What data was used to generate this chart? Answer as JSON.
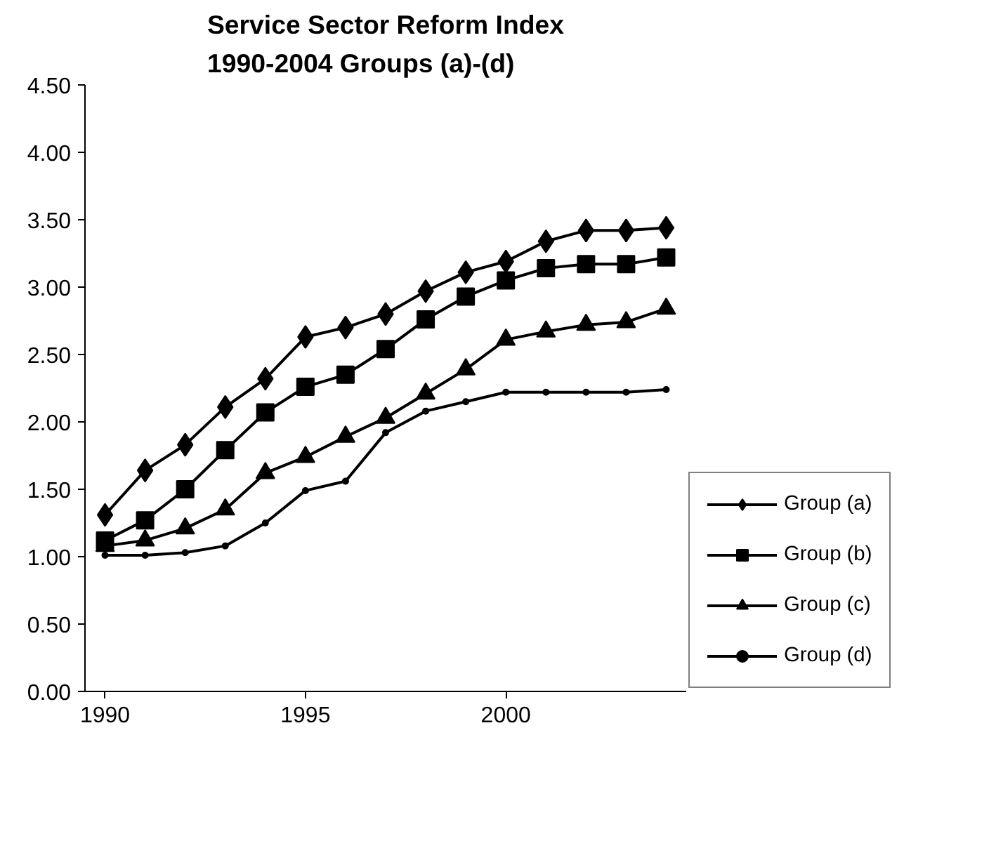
{
  "chart_data": {
    "type": "line",
    "title": "Service Sector Reform Index\n1990-2004 Groups (a)-(d)",
    "x": [
      1990,
      1991,
      1992,
      1993,
      1994,
      1995,
      1996,
      1997,
      1998,
      1999,
      2000,
      2001,
      2002,
      2003,
      2004
    ],
    "series": [
      {
        "name": "Group (a)",
        "color": "#000000",
        "marker": "diamond",
        "values": [
          1.31,
          1.64,
          1.83,
          2.11,
          2.32,
          2.63,
          2.7,
          2.8,
          2.97,
          3.11,
          3.19,
          3.34,
          3.42,
          3.42,
          3.44
        ]
      },
      {
        "name": "Group (b)",
        "color": "#000000",
        "marker": "square",
        "values": [
          1.12,
          1.27,
          1.5,
          1.79,
          2.07,
          2.26,
          2.35,
          2.54,
          2.76,
          2.93,
          3.05,
          3.14,
          3.17,
          3.17,
          3.22
        ]
      },
      {
        "name": "Group (c)",
        "color": "#000000",
        "marker": "triangle",
        "values": [
          1.08,
          1.12,
          1.21,
          1.35,
          1.62,
          1.74,
          1.89,
          2.03,
          2.21,
          2.39,
          2.61,
          2.67,
          2.72,
          2.74,
          2.84
        ]
      },
      {
        "name": "Group (d)",
        "color": "#000000",
        "marker": "circle",
        "values": [
          1.01,
          1.01,
          1.03,
          1.08,
          1.25,
          1.49,
          1.56,
          1.92,
          2.08,
          2.15,
          2.22,
          2.22,
          2.22,
          2.22,
          2.24
        ]
      }
    ],
    "xlim": [
      1989.5,
      2004.5
    ],
    "xticks": [
      {
        "value": 1990,
        "label": "1990"
      },
      {
        "value": 1995,
        "label": "1995"
      },
      {
        "value": 2000,
        "label": "2000"
      }
    ],
    "ylim": [
      0,
      4.5
    ],
    "yticks": [
      {
        "value": 0,
        "label": "0.00"
      },
      {
        "value": 0.5,
        "label": "0.50"
      },
      {
        "value": 1,
        "label": "1.00"
      },
      {
        "value": 1.5,
        "label": "1.50"
      },
      {
        "value": 2,
        "label": "2.00"
      },
      {
        "value": 2.5,
        "label": "2.50"
      },
      {
        "value": 3,
        "label": "3.00"
      },
      {
        "value": 3.5,
        "label": "3.50"
      },
      {
        "value": 4,
        "label": "4.00"
      },
      {
        "value": 4.5,
        "label": "4.50"
      }
    ],
    "grid": false,
    "legend": "right",
    "line_style": "solid"
  }
}
